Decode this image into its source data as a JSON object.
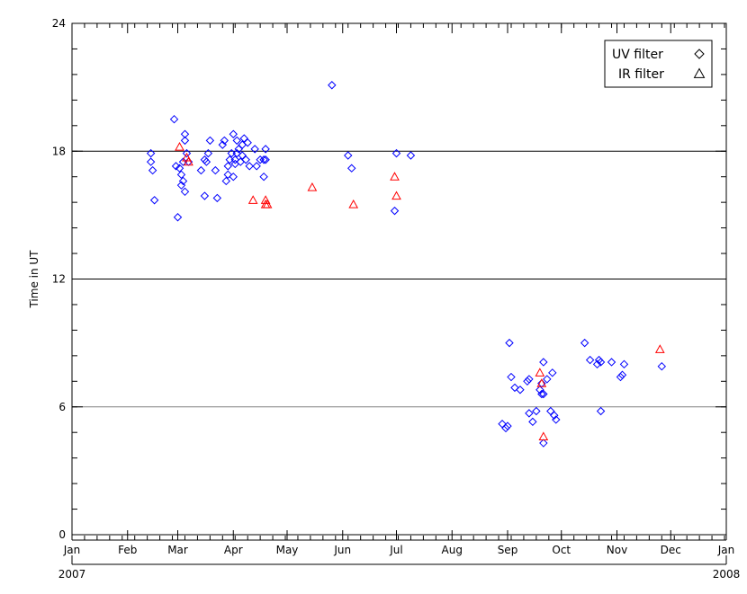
{
  "chart_data": {
    "type": "scatter",
    "title": "",
    "ylabel": "Time in UT",
    "ylim": [
      0,
      24
    ],
    "yticks": [
      "0",
      "6",
      "12",
      "18",
      "24"
    ],
    "y_minor_step": 1.2,
    "hlines": [
      {
        "y": 6,
        "color": "#808080"
      },
      {
        "y": 12,
        "color": "#000000"
      },
      {
        "y": 18,
        "color": "#000000"
      }
    ],
    "x_axis_type": "date",
    "xlim": [
      "2007-01-01",
      "2008-01-01"
    ],
    "month_labels": [
      "Jan",
      "Feb",
      "Mar",
      "Apr",
      "May",
      "Jun",
      "Jul",
      "Aug",
      "Sep",
      "Oct",
      "Nov",
      "Dec",
      "Jan"
    ],
    "month_dates": [
      "2007-01-01",
      "2007-02-01",
      "2007-03-01",
      "2007-04-01",
      "2007-05-01",
      "2007-06-01",
      "2007-07-01",
      "2007-08-01",
      "2007-09-01",
      "2007-10-01",
      "2007-11-01",
      "2007-12-01",
      "2008-01-01"
    ],
    "year_labels": [
      {
        "text": "2007",
        "date": "2007-01-01"
      },
      {
        "text": "2008",
        "date": "2008-01-01"
      }
    ],
    "legend": {
      "position": "top-right"
    },
    "series": [
      {
        "name": "UV filter",
        "marker": "diamond",
        "color": "#0000ff",
        "points": [
          [
            "2007-02-14",
            17.9
          ],
          [
            "2007-02-14",
            17.5
          ],
          [
            "2007-02-15",
            17.1
          ],
          [
            "2007-02-16",
            15.7
          ],
          [
            "2007-02-27",
            19.5
          ],
          [
            "2007-02-28",
            17.3
          ],
          [
            "2007-03-01",
            14.9
          ],
          [
            "2007-03-02",
            17.2
          ],
          [
            "2007-03-03",
            16.9
          ],
          [
            "2007-03-03",
            16.4
          ],
          [
            "2007-03-04",
            16.6
          ],
          [
            "2007-03-04",
            17.5
          ],
          [
            "2007-03-05",
            18.8
          ],
          [
            "2007-03-05",
            18.5
          ],
          [
            "2007-03-05",
            16.1
          ],
          [
            "2007-03-06",
            17.9
          ],
          [
            "2007-03-07",
            17.5
          ],
          [
            "2007-03-14",
            17.1
          ],
          [
            "2007-03-16",
            15.9
          ],
          [
            "2007-03-16",
            17.6
          ],
          [
            "2007-03-17",
            17.5
          ],
          [
            "2007-03-18",
            17.9
          ],
          [
            "2007-03-19",
            18.5
          ],
          [
            "2007-03-22",
            17.1
          ],
          [
            "2007-03-23",
            15.8
          ],
          [
            "2007-03-26",
            18.3
          ],
          [
            "2007-03-27",
            18.5
          ],
          [
            "2007-03-28",
            16.6
          ],
          [
            "2007-03-29",
            16.9
          ],
          [
            "2007-03-29",
            17.3
          ],
          [
            "2007-03-30",
            17.6
          ],
          [
            "2007-03-31",
            17.9
          ],
          [
            "2007-04-01",
            18.8
          ],
          [
            "2007-04-01",
            16.8
          ],
          [
            "2007-04-02",
            17.6
          ],
          [
            "2007-04-02",
            17.4
          ],
          [
            "2007-04-03",
            17.9
          ],
          [
            "2007-04-03",
            18.5
          ],
          [
            "2007-04-04",
            18.1
          ],
          [
            "2007-04-05",
            17.5
          ],
          [
            "2007-04-06",
            18.3
          ],
          [
            "2007-04-06",
            17.8
          ],
          [
            "2007-04-07",
            18.6
          ],
          [
            "2007-04-08",
            17.6
          ],
          [
            "2007-04-09",
            18.4
          ],
          [
            "2007-04-10",
            17.3
          ],
          [
            "2007-04-13",
            18.1
          ],
          [
            "2007-04-14",
            17.3
          ],
          [
            "2007-04-16",
            17.6
          ],
          [
            "2007-04-18",
            16.8
          ],
          [
            "2007-04-18",
            17.6
          ],
          [
            "2007-04-19",
            18.1
          ],
          [
            "2007-04-19",
            17.6
          ],
          [
            "2007-05-26",
            21.1
          ],
          [
            "2007-06-04",
            17.8
          ],
          [
            "2007-06-06",
            17.2
          ],
          [
            "2007-06-30",
            15.2
          ],
          [
            "2007-07-01",
            17.9
          ],
          [
            "2007-07-09",
            17.8
          ],
          [
            "2007-08-29",
            5.2
          ],
          [
            "2007-08-31",
            5.0
          ],
          [
            "2007-09-01",
            5.1
          ],
          [
            "2007-09-02",
            9.0
          ],
          [
            "2007-09-03",
            7.4
          ],
          [
            "2007-09-05",
            6.9
          ],
          [
            "2007-09-08",
            6.8
          ],
          [
            "2007-09-12",
            7.2
          ],
          [
            "2007-09-13",
            7.3
          ],
          [
            "2007-09-13",
            5.7
          ],
          [
            "2007-09-15",
            5.3
          ],
          [
            "2007-09-17",
            5.8
          ],
          [
            "2007-09-19",
            6.8
          ],
          [
            "2007-09-20",
            7.1
          ],
          [
            "2007-09-20",
            6.6
          ],
          [
            "2007-09-21",
            8.1
          ],
          [
            "2007-09-21",
            6.6
          ],
          [
            "2007-09-21",
            4.3
          ],
          [
            "2007-09-23",
            7.3
          ],
          [
            "2007-09-25",
            5.8
          ],
          [
            "2007-09-26",
            7.6
          ],
          [
            "2007-09-27",
            5.6
          ],
          [
            "2007-09-28",
            5.4
          ],
          [
            "2007-10-14",
            9.0
          ],
          [
            "2007-10-17",
            8.2
          ],
          [
            "2007-10-21",
            8.0
          ],
          [
            "2007-10-22",
            8.2
          ],
          [
            "2007-10-23",
            8.1
          ],
          [
            "2007-10-23",
            5.8
          ],
          [
            "2007-10-29",
            8.1
          ],
          [
            "2007-11-03",
            7.4
          ],
          [
            "2007-11-04",
            7.5
          ],
          [
            "2007-11-05",
            8.0
          ],
          [
            "2007-11-26",
            7.9
          ]
        ]
      },
      {
        "name": "IR filter",
        "marker": "triangle",
        "color": "#ff0000",
        "points": [
          [
            "2007-03-02",
            18.2
          ],
          [
            "2007-03-06",
            17.7
          ],
          [
            "2007-03-07",
            17.5
          ],
          [
            "2007-04-12",
            15.7
          ],
          [
            "2007-04-19",
            15.5
          ],
          [
            "2007-04-19",
            15.7
          ],
          [
            "2007-04-20",
            15.5
          ],
          [
            "2007-05-15",
            16.3
          ],
          [
            "2007-06-07",
            15.5
          ],
          [
            "2007-06-30",
            16.8
          ],
          [
            "2007-07-01",
            15.9
          ],
          [
            "2007-09-19",
            7.6
          ],
          [
            "2007-09-20",
            7.1
          ],
          [
            "2007-09-21",
            4.6
          ],
          [
            "2007-11-25",
            8.7
          ]
        ]
      }
    ]
  }
}
